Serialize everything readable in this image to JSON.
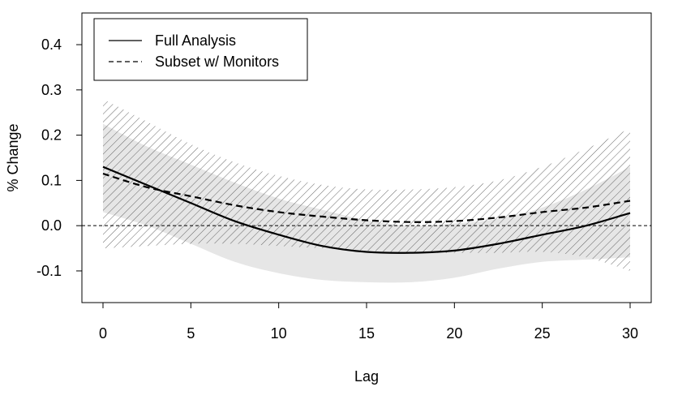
{
  "chart_data": {
    "type": "line",
    "title": "",
    "xlabel": "Lag",
    "ylabel": "% Change",
    "xlim": [
      -1.2,
      31.2
    ],
    "ylim": [
      -0.17,
      0.47
    ],
    "xticks": [
      0,
      5,
      10,
      15,
      20,
      25,
      30
    ],
    "xtick_labels": [
      "0",
      "5",
      "10",
      "15",
      "20",
      "25",
      "30"
    ],
    "yticks": [
      -0.1,
      0.0,
      0.1,
      0.2,
      0.3,
      0.4
    ],
    "ytick_labels": [
      "-0.1",
      "0.0",
      "0.1",
      "0.2",
      "0.3",
      "0.4"
    ],
    "reference_line": 0.0,
    "grid": false,
    "legend_position": "top-left",
    "x": [
      0,
      2.5,
      5,
      7.5,
      10,
      12.5,
      15,
      17.5,
      20,
      22.5,
      25,
      27.5,
      30
    ],
    "series": [
      {
        "name": "Full Analysis",
        "line_style": "solid",
        "values": [
          0.13,
          0.09,
          0.05,
          0.01,
          -0.02,
          -0.045,
          -0.058,
          -0.06,
          -0.055,
          -0.04,
          -0.02,
          0.0,
          0.028
        ],
        "ci_lower": [
          0.03,
          0.0,
          -0.04,
          -0.08,
          -0.105,
          -0.12,
          -0.125,
          -0.125,
          -0.115,
          -0.095,
          -0.08,
          -0.075,
          -0.07
        ],
        "ci_upper": [
          0.225,
          0.175,
          0.135,
          0.095,
          0.06,
          0.035,
          0.012,
          0.0,
          0.005,
          0.015,
          0.04,
          0.08,
          0.13
        ],
        "band_style": "solid-light-gray"
      },
      {
        "name": "Subset w/ Monitors",
        "line_style": "dashed",
        "values": [
          0.115,
          0.085,
          0.065,
          0.045,
          0.03,
          0.02,
          0.012,
          0.008,
          0.01,
          0.018,
          0.03,
          0.04,
          0.055
        ],
        "ci_lower": [
          -0.05,
          -0.045,
          -0.04,
          -0.04,
          -0.045,
          -0.05,
          -0.055,
          -0.06,
          -0.06,
          -0.06,
          -0.058,
          -0.07,
          -0.1
        ],
        "ci_upper": [
          0.28,
          0.23,
          0.18,
          0.14,
          0.11,
          0.09,
          0.08,
          0.08,
          0.085,
          0.1,
          0.13,
          0.17,
          0.215
        ],
        "band_style": "hatched"
      }
    ]
  }
}
